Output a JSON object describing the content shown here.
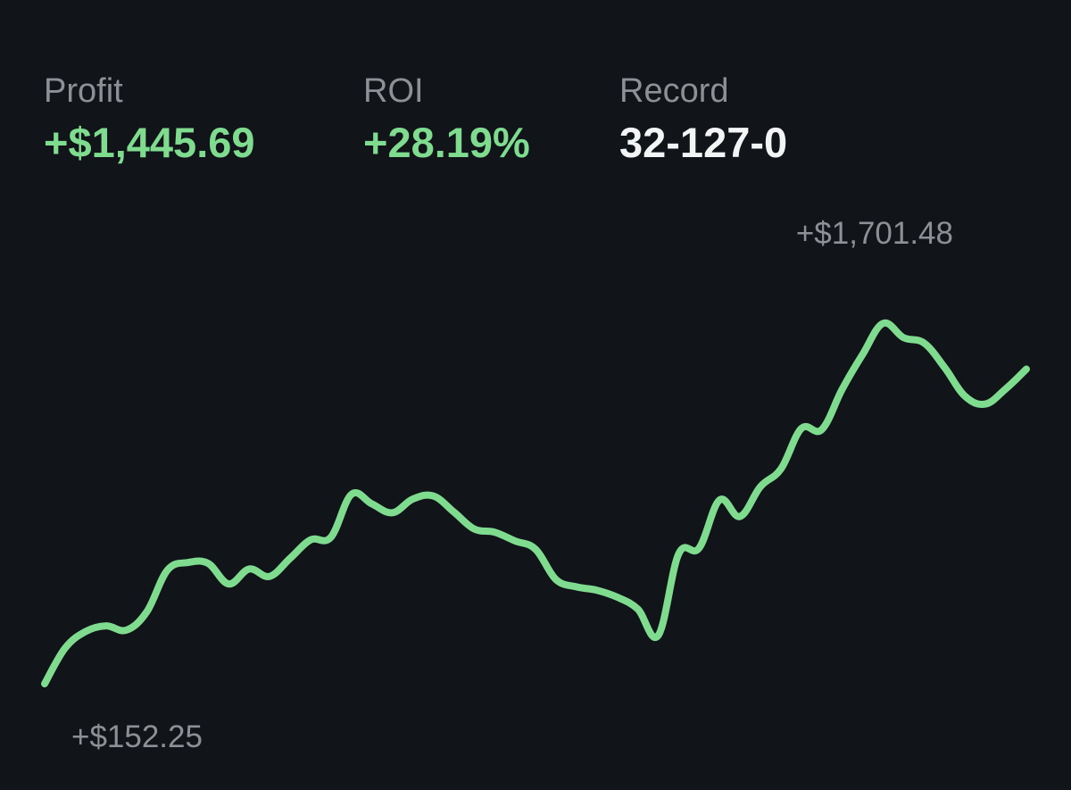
{
  "stats": {
    "profit": {
      "label": "Profit",
      "value": "+$1,445.69"
    },
    "roi": {
      "label": "ROI",
      "value": "+28.19%"
    },
    "record": {
      "label": "Record",
      "value": "32-127-0"
    }
  },
  "colors": {
    "background": "#111419",
    "line": "#7fdc8f",
    "positive": "#7fdc8f",
    "label": "#8d9096",
    "neutral": "#f3f4f5"
  },
  "chart_data": {
    "type": "line",
    "title": "",
    "xlabel": "",
    "ylabel": "",
    "grid": false,
    "legend": "none",
    "max_label": "+$1,701.48",
    "min_label": "+$152.25",
    "ylim": [
      152.25,
      1701.48
    ],
    "series": [
      {
        "values": [
          152.25,
          297.65,
          365.56,
          388.75,
          371.36,
          446.75,
          616.08,
          647.34,
          643.52,
          559.69,
          620.95,
          590.89,
          664.39,
          739.7,
          750.76,
          925.69,
          886.94,
          850.61,
          906.53,
          919.35,
          854.4,
          784.31,
          771.38,
          735.62,
          701.75,
          578.06,
          548.11,
          534.37,
          505.82,
          457.37,
          349.44,
          682.69,
          706.24,
          902.69,
          835.21,
          957.56,
          1029.55,
          1194.62,
          1190.49,
          1356.11,
          1498.21,
          1624.26,
          1565.34,
          1543.73,
          1444.19,
          1326.34,
          1294.5,
          1357.35,
          1437.02
        ]
      }
    ]
  }
}
